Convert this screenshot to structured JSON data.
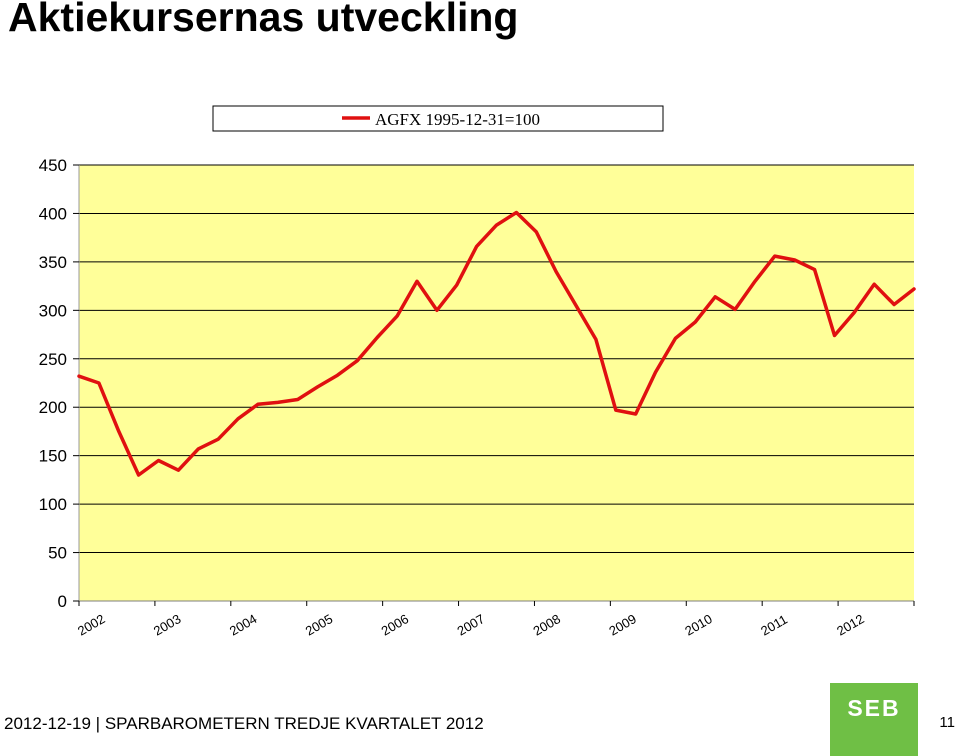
{
  "page": {
    "title": "Aktiekursernas utveckling",
    "footer": "2012-12-19  |  SPARBAROMETERN TREDJE KVARTALET 2012",
    "page_number": "11",
    "logo_text": "SEB",
    "colors": {
      "plot_bg": "#ffff99",
      "line": "#e01010",
      "logo": "#6fbf45"
    }
  },
  "chart_data": {
    "type": "line",
    "title": "",
    "xlabel": "",
    "ylabel": "",
    "ylim": [
      0,
      450
    ],
    "yticks": [
      0,
      50,
      100,
      150,
      200,
      250,
      300,
      350,
      400,
      450
    ],
    "xtick_labels": [
      "2002",
      "2003",
      "2004",
      "2005",
      "2006",
      "2007",
      "2008",
      "2009",
      "2010",
      "2011",
      "2012"
    ],
    "grid": true,
    "legend": "top-center",
    "series": [
      {
        "name": "AGFX 1995-12-31=100",
        "color": "#e01010",
        "values": [
          232,
          225,
          175,
          130,
          145,
          135,
          157,
          167,
          188,
          203,
          205,
          208,
          221,
          233,
          248,
          272,
          294,
          330,
          300,
          326,
          366,
          388,
          401,
          381,
          340,
          305,
          270,
          197,
          193,
          236,
          271,
          288,
          314,
          301,
          330,
          356,
          352,
          342,
          274,
          298,
          327,
          306,
          322
        ]
      }
    ]
  }
}
